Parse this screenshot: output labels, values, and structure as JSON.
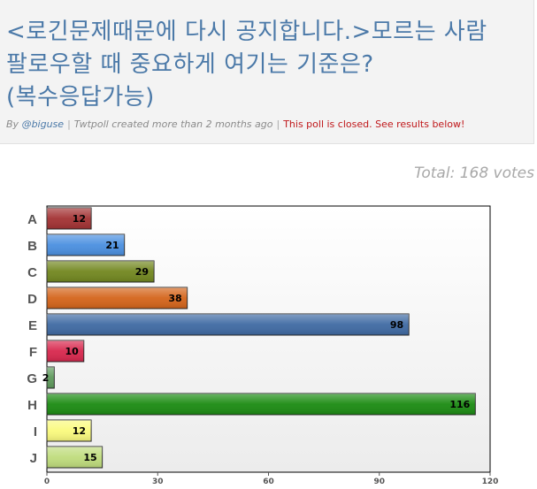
{
  "poll": {
    "title": "<로긴문제때문에 다시 공지합니다.>모르는 사람 팔로우할 때 중요하게 여기는 기준은? (복수응답가능)",
    "by_label": "By",
    "author": "@biguse",
    "created": "Twtpoll created more than 2 months ago",
    "status": "This poll is closed. See results below!",
    "total": "Total: 168 votes"
  },
  "chart_data": {
    "type": "bar",
    "orientation": "horizontal",
    "categories": [
      "A",
      "B",
      "C",
      "D",
      "E",
      "F",
      "G",
      "H",
      "I",
      "J"
    ],
    "values": [
      12,
      21,
      29,
      38,
      98,
      10,
      2,
      116,
      12,
      15
    ],
    "value_labels": [
      "12",
      "21",
      "29",
      "38",
      "98",
      "10",
      "2",
      "116",
      "12",
      "15"
    ],
    "colors": [
      "#a33233",
      "#4a8fe0",
      "#72871f",
      "#d4641a",
      "#3f6aa3",
      "#d8274d",
      "#5e9a5c",
      "#1b8b12",
      "#fafa7d",
      "#bfdc7c"
    ],
    "xlim": [
      0,
      120
    ],
    "xticks": [
      "0",
      "30",
      "60",
      "90",
      "120"
    ],
    "title": "",
    "xlabel": "",
    "ylabel": "",
    "grid": false,
    "legend": "none"
  }
}
